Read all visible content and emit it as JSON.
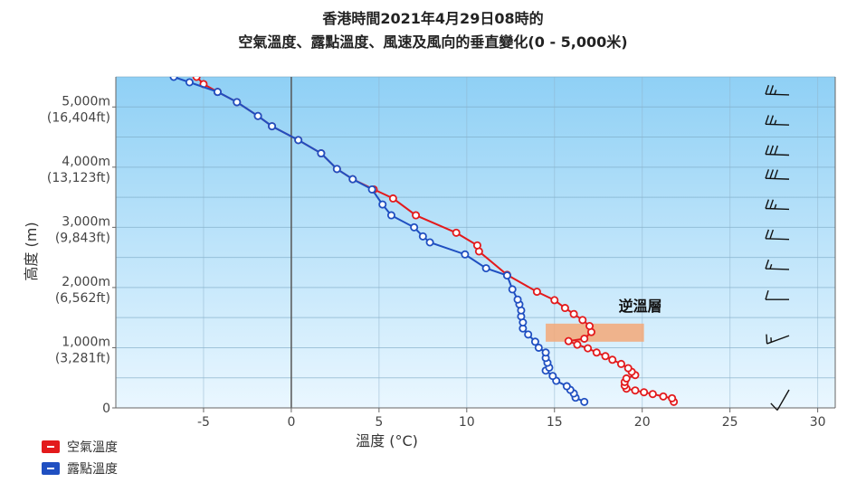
{
  "chart_data": {
    "type": "line",
    "title_line1": "香港時間2021年4月29日08時的",
    "title_line2": "空氣溫度、露點溫度、風速及風向的垂直變化(0 - 5,000米)",
    "xlabel": "溫度 (°C)",
    "ylabel": "高度 (m)",
    "xlim": [
      -10,
      31
    ],
    "ylim": [
      0,
      5500
    ],
    "x_ticks": [
      -5,
      0,
      5,
      10,
      15,
      20,
      25,
      30
    ],
    "y_ticks": [
      {
        "value": 0,
        "label_m": "0",
        "label_ft": ""
      },
      {
        "value": 1000,
        "label_m": "1,000m",
        "label_ft": "(3,281ft)"
      },
      {
        "value": 2000,
        "label_m": "2,000m",
        "label_ft": "(6,562ft)"
      },
      {
        "value": 3000,
        "label_m": "3,000m",
        "label_ft": "(9,843ft)"
      },
      {
        "value": 4000,
        "label_m": "4,000m",
        "label_ft": "(13,123ft)"
      },
      {
        "value": 5000,
        "label_m": "5,000m",
        "label_ft": "(16,404ft)"
      }
    ],
    "grid": true,
    "legend_position": "bottom-left",
    "annotation": {
      "text": "逆溫層",
      "band_x": [
        14.5,
        20.1
      ],
      "band_y": [
        1100,
        1400
      ]
    },
    "series": [
      {
        "name": "空氣溫度",
        "color": "#e31a1c",
        "points": [
          [
            21.8,
            100
          ],
          [
            21.7,
            160
          ],
          [
            21.2,
            190
          ],
          [
            20.6,
            230
          ],
          [
            20.1,
            260
          ],
          [
            19.6,
            290
          ],
          [
            19.1,
            320
          ],
          [
            19.0,
            370
          ],
          [
            19.0,
            430
          ],
          [
            19.1,
            490
          ],
          [
            19.6,
            545
          ],
          [
            19.4,
            600
          ],
          [
            19.2,
            660
          ],
          [
            18.8,
            730
          ],
          [
            18.3,
            800
          ],
          [
            17.9,
            860
          ],
          [
            17.4,
            920
          ],
          [
            16.9,
            990
          ],
          [
            16.3,
            1050
          ],
          [
            15.8,
            1110
          ],
          [
            16.7,
            1150
          ],
          [
            17.1,
            1260
          ],
          [
            17.0,
            1360
          ],
          [
            16.6,
            1460
          ],
          [
            16.1,
            1560
          ],
          [
            15.6,
            1660
          ],
          [
            15.0,
            1790
          ],
          [
            14.0,
            1930
          ],
          [
            12.3,
            2210
          ],
          [
            10.7,
            2600
          ],
          [
            10.6,
            2700
          ],
          [
            9.4,
            2910
          ],
          [
            7.1,
            3200
          ],
          [
            5.8,
            3480
          ],
          [
            4.7,
            3630
          ],
          [
            3.5,
            3800
          ],
          [
            2.6,
            3970
          ],
          [
            1.7,
            4230
          ],
          [
            0.4,
            4450
          ],
          [
            -1.1,
            4680
          ],
          [
            -1.9,
            4850
          ],
          [
            -3.1,
            5080
          ],
          [
            -4.2,
            5250
          ],
          [
            -5.0,
            5380
          ],
          [
            -5.4,
            5500
          ]
        ]
      },
      {
        "name": "露點溫度",
        "color": "#1f4fc1",
        "points": [
          [
            16.7,
            100
          ],
          [
            16.2,
            170
          ],
          [
            16.1,
            240
          ],
          [
            15.9,
            300
          ],
          [
            15.7,
            360
          ],
          [
            15.1,
            450
          ],
          [
            14.9,
            530
          ],
          [
            14.5,
            620
          ],
          [
            14.7,
            670
          ],
          [
            14.6,
            750
          ],
          [
            14.5,
            830
          ],
          [
            14.5,
            920
          ],
          [
            14.1,
            1000
          ],
          [
            13.9,
            1100
          ],
          [
            13.5,
            1220
          ],
          [
            13.2,
            1320
          ],
          [
            13.2,
            1420
          ],
          [
            13.1,
            1520
          ],
          [
            13.1,
            1620
          ],
          [
            13.0,
            1720
          ],
          [
            12.9,
            1800
          ],
          [
            12.6,
            1970
          ],
          [
            12.3,
            2200
          ],
          [
            11.1,
            2320
          ],
          [
            9.9,
            2550
          ],
          [
            7.9,
            2750
          ],
          [
            7.5,
            2850
          ],
          [
            7.0,
            3000
          ],
          [
            5.7,
            3200
          ],
          [
            5.2,
            3380
          ],
          [
            4.6,
            3630
          ],
          [
            3.5,
            3800
          ],
          [
            2.6,
            3970
          ],
          [
            1.7,
            4230
          ],
          [
            0.4,
            4450
          ],
          [
            -1.1,
            4680
          ],
          [
            -1.9,
            4850
          ],
          [
            -3.1,
            5080
          ],
          [
            -4.2,
            5250
          ],
          [
            -5.8,
            5410
          ],
          [
            -6.7,
            5500
          ]
        ]
      }
    ],
    "wind_barbs": [
      {
        "height": 300,
        "dir_deg": 210,
        "speed_kt": 10
      },
      {
        "height": 1200,
        "dir_deg": 250,
        "speed_kt": 15
      },
      {
        "height": 1800,
        "dir_deg": 270,
        "speed_kt": 10
      },
      {
        "height": 2300,
        "dir_deg": 272,
        "speed_kt": 15
      },
      {
        "height": 2800,
        "dir_deg": 272,
        "speed_kt": 20
      },
      {
        "height": 3300,
        "dir_deg": 272,
        "speed_kt": 25
      },
      {
        "height": 3800,
        "dir_deg": 272,
        "speed_kt": 30
      },
      {
        "height": 4200,
        "dir_deg": 272,
        "speed_kt": 30
      },
      {
        "height": 4700,
        "dir_deg": 272,
        "speed_kt": 25
      },
      {
        "height": 5200,
        "dir_deg": 272,
        "speed_kt": 25
      }
    ]
  }
}
